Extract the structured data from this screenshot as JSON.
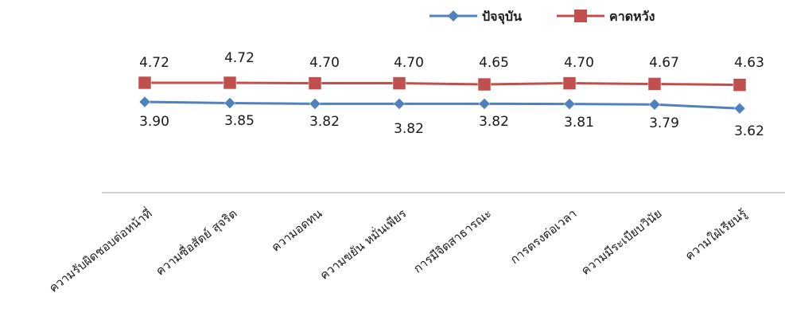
{
  "chart_data": {
    "type": "line",
    "categories": [
      "ความรับผิดชอบต่อหน้าที่",
      "ความซื่อสัตย์ สุจริต",
      "ความอดทน",
      "ความขยัน หมั่นเพียร",
      "การมีจิตสาธารณะ",
      "การตรงต่อเวลา",
      "ความมีระเบียบวินัย",
      "ความใฝ่เรียนรู้"
    ],
    "series": [
      {
        "name": "ปัจจุบัน",
        "color": "#4f81bd",
        "marker": "diamond",
        "values": [
          3.9,
          3.85,
          3.82,
          3.82,
          3.82,
          3.81,
          3.79,
          3.62
        ],
        "labels": [
          "3.90",
          "3.85",
          "3.82",
          "3.82",
          "3.82",
          "3.81",
          "3.79",
          "3.62"
        ]
      },
      {
        "name": "คาดหวัง",
        "color": "#c0504d",
        "marker": "square",
        "values": [
          4.72,
          4.72,
          4.7,
          4.7,
          4.65,
          4.7,
          4.67,
          4.63
        ],
        "labels": [
          "4.72",
          "4.72",
          "4.70",
          "4.70",
          "4.65",
          "4.70",
          "4.67",
          "4.63"
        ]
      }
    ],
    "legend_position": "top-right",
    "gridlines": false,
    "axis_color": "#a6a6a6"
  }
}
